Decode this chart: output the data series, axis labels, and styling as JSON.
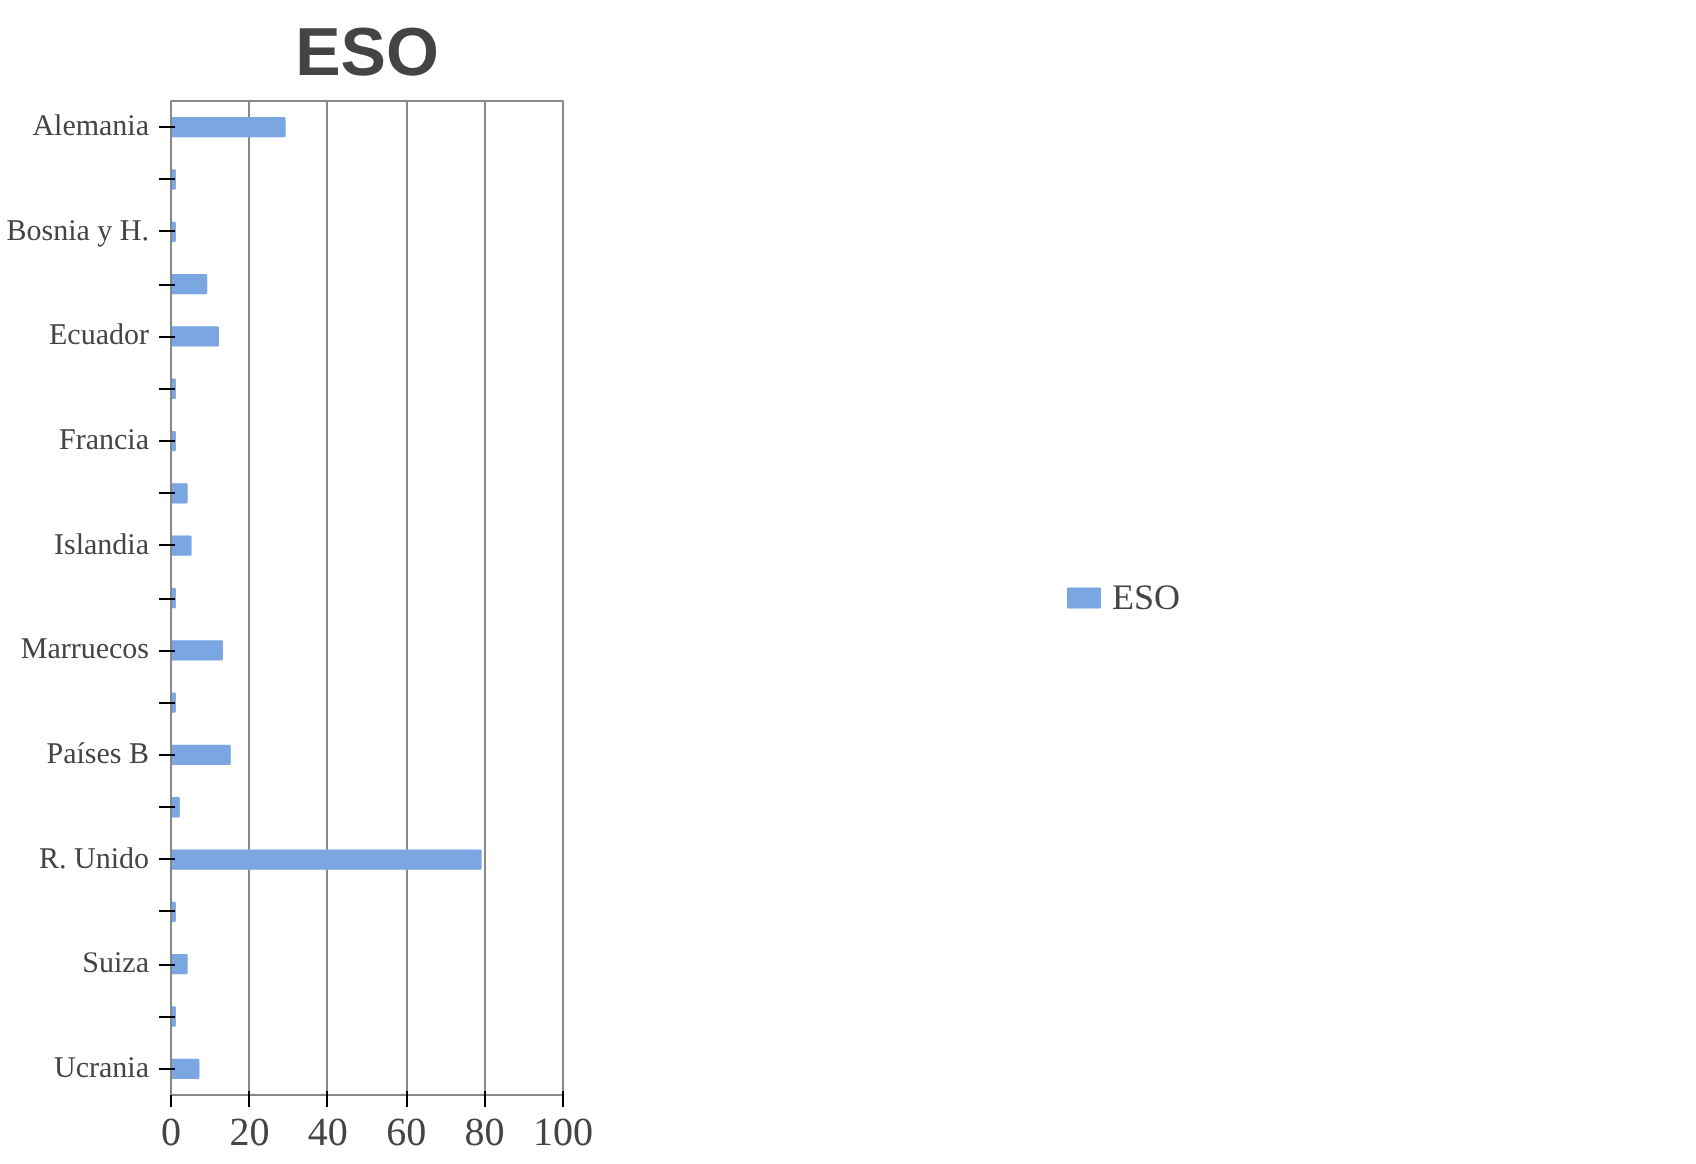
{
  "chart_data": {
    "type": "bar",
    "orientation": "horizontal",
    "title": "ESO",
    "categories": [
      "Alemania",
      null,
      "Bosnia y H.",
      null,
      "Ecuador",
      null,
      "Francia",
      null,
      "Islandia",
      null,
      "Marruecos",
      null,
      "Países B",
      null,
      "R. Unido",
      null,
      "Suiza",
      null,
      "Ucrania"
    ],
    "series": [
      {
        "name": "ESO",
        "color": "#7aa6e2",
        "values": [
          29,
          1,
          1,
          9,
          12,
          1,
          1,
          4,
          5,
          1,
          13,
          1,
          15,
          2,
          79,
          1,
          4,
          1,
          7
        ]
      }
    ],
    "xlim": [
      0,
      100
    ],
    "xticks": [
      0,
      20,
      40,
      60,
      80,
      100
    ],
    "grid": "x",
    "legend": "right"
  }
}
